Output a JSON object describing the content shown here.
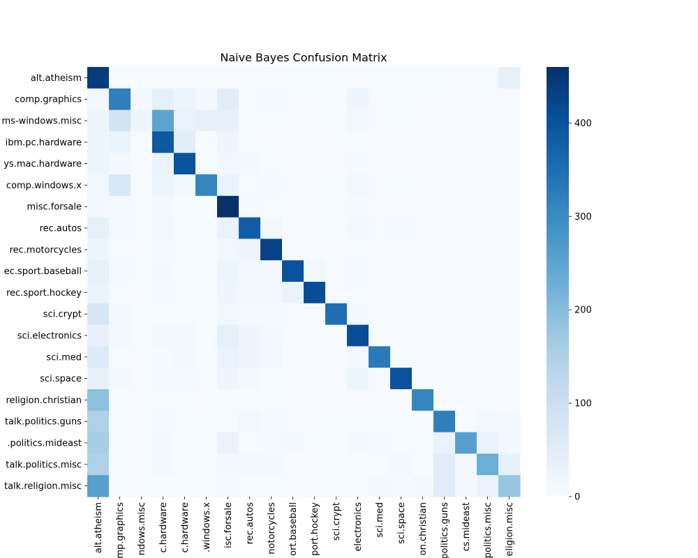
{
  "chart_data": {
    "type": "heatmap",
    "title": "Naive Bayes Confusion Matrix",
    "xlabel": "",
    "ylabel": "",
    "row_labels": [
      "alt.atheism",
      "comp.graphics",
      "ms-windows.misc",
      "ibm.pc.hardware",
      "ys.mac.hardware",
      "comp.windows.x",
      "misc.forsale",
      "rec.autos",
      "rec.motorcycles",
      "ec.sport.baseball",
      "rec.sport.hockey",
      "sci.crypt",
      "sci.electronics",
      "sci.med",
      "sci.space",
      "religion.christian",
      "talk.politics.guns",
      ".politics.mideast",
      "talk.politics.misc",
      "talk.religion.misc"
    ],
    "col_labels": [
      "alt.atheism",
      "mp.graphics",
      "ndows.misc",
      "c.hardware",
      "c.hardware",
      ".windows.x",
      "isc.forsale",
      "rec.autos",
      "notorcycles",
      "ort.baseball",
      "port.hockey",
      "sci.crypt",
      "electronics",
      "sci.med",
      "sci.space",
      "on.christian",
      "politics.guns",
      "cs.mideast",
      "politics.misc",
      "eligion.misc"
    ],
    "matrix": [
      [
        440,
        4,
        2,
        2,
        3,
        4,
        3,
        3,
        3,
        4,
        4,
        4,
        3,
        5,
        5,
        5,
        4,
        3,
        4,
        40
      ],
      [
        12,
        320,
        10,
        40,
        25,
        10,
        45,
        5,
        8,
        3,
        3,
        5,
        20,
        3,
        5,
        3,
        3,
        3,
        3,
        3
      ],
      [
        20,
        85,
        20,
        250,
        30,
        40,
        35,
        5,
        5,
        3,
        3,
        4,
        15,
        3,
        4,
        3,
        3,
        3,
        3,
        3
      ],
      [
        20,
        30,
        5,
        390,
        45,
        3,
        20,
        5,
        3,
        3,
        3,
        3,
        5,
        3,
        3,
        3,
        3,
        3,
        3,
        3
      ],
      [
        25,
        10,
        3,
        30,
        400,
        5,
        15,
        10,
        5,
        3,
        3,
        3,
        8,
        3,
        3,
        3,
        3,
        3,
        3,
        3
      ],
      [
        15,
        70,
        5,
        25,
        15,
        310,
        30,
        5,
        8,
        3,
        3,
        5,
        15,
        3,
        5,
        3,
        3,
        3,
        3,
        3
      ],
      [
        10,
        8,
        5,
        10,
        5,
        5,
        460,
        8,
        5,
        3,
        3,
        5,
        8,
        3,
        3,
        3,
        3,
        3,
        3,
        3
      ],
      [
        40,
        8,
        5,
        15,
        5,
        5,
        30,
        380,
        15,
        3,
        3,
        5,
        15,
        5,
        8,
        3,
        3,
        3,
        3,
        3
      ],
      [
        25,
        5,
        3,
        8,
        5,
        5,
        15,
        20,
        430,
        3,
        3,
        3,
        5,
        3,
        3,
        3,
        3,
        3,
        3,
        3
      ],
      [
        40,
        8,
        5,
        10,
        5,
        5,
        25,
        15,
        10,
        400,
        15,
        3,
        8,
        3,
        3,
        3,
        3,
        3,
        3,
        3
      ],
      [
        30,
        5,
        3,
        8,
        5,
        5,
        20,
        15,
        10,
        30,
        410,
        3,
        5,
        3,
        3,
        3,
        3,
        3,
        3,
        3
      ],
      [
        75,
        10,
        5,
        5,
        5,
        5,
        15,
        8,
        8,
        3,
        3,
        350,
        10,
        3,
        3,
        3,
        3,
        3,
        3,
        3
      ],
      [
        35,
        10,
        5,
        15,
        15,
        5,
        40,
        20,
        10,
        3,
        3,
        3,
        410,
        3,
        3,
        3,
        3,
        3,
        3,
        3
      ],
      [
        60,
        5,
        3,
        8,
        15,
        5,
        30,
        20,
        15,
        3,
        3,
        3,
        10,
        330,
        5,
        3,
        3,
        3,
        3,
        3
      ],
      [
        35,
        10,
        3,
        8,
        8,
        5,
        20,
        10,
        5,
        3,
        3,
        3,
        25,
        3,
        400,
        3,
        3,
        3,
        3,
        3
      ],
      [
        190,
        5,
        3,
        5,
        5,
        3,
        5,
        5,
        5,
        3,
        3,
        3,
        3,
        3,
        3,
        310,
        3,
        3,
        3,
        3
      ],
      [
        150,
        5,
        3,
        8,
        5,
        5,
        5,
        15,
        8,
        3,
        3,
        5,
        5,
        5,
        5,
        3,
        320,
        3,
        15,
        10
      ],
      [
        160,
        5,
        3,
        10,
        5,
        5,
        30,
        5,
        8,
        10,
        5,
        5,
        10,
        8,
        5,
        5,
        30,
        260,
        30,
        10
      ],
      [
        150,
        5,
        3,
        10,
        5,
        5,
        10,
        15,
        10,
        3,
        3,
        5,
        5,
        5,
        10,
        5,
        50,
        10,
        230,
        40
      ],
      [
        260,
        5,
        3,
        5,
        5,
        5,
        8,
        5,
        5,
        3,
        3,
        5,
        5,
        10,
        8,
        10,
        50,
        10,
        30,
        180
      ]
    ],
    "vmin": 0,
    "vmax": 460,
    "colorbar_ticks": [
      0,
      100,
      200,
      300,
      400
    ],
    "colormap": "Blues",
    "colormap_stops": [
      "#f7fbff",
      "#deebf7",
      "#c6dbef",
      "#9ecae1",
      "#6baed6",
      "#4292c6",
      "#2171b5",
      "#08519c",
      "#08306b"
    ],
    "grid": false
  }
}
